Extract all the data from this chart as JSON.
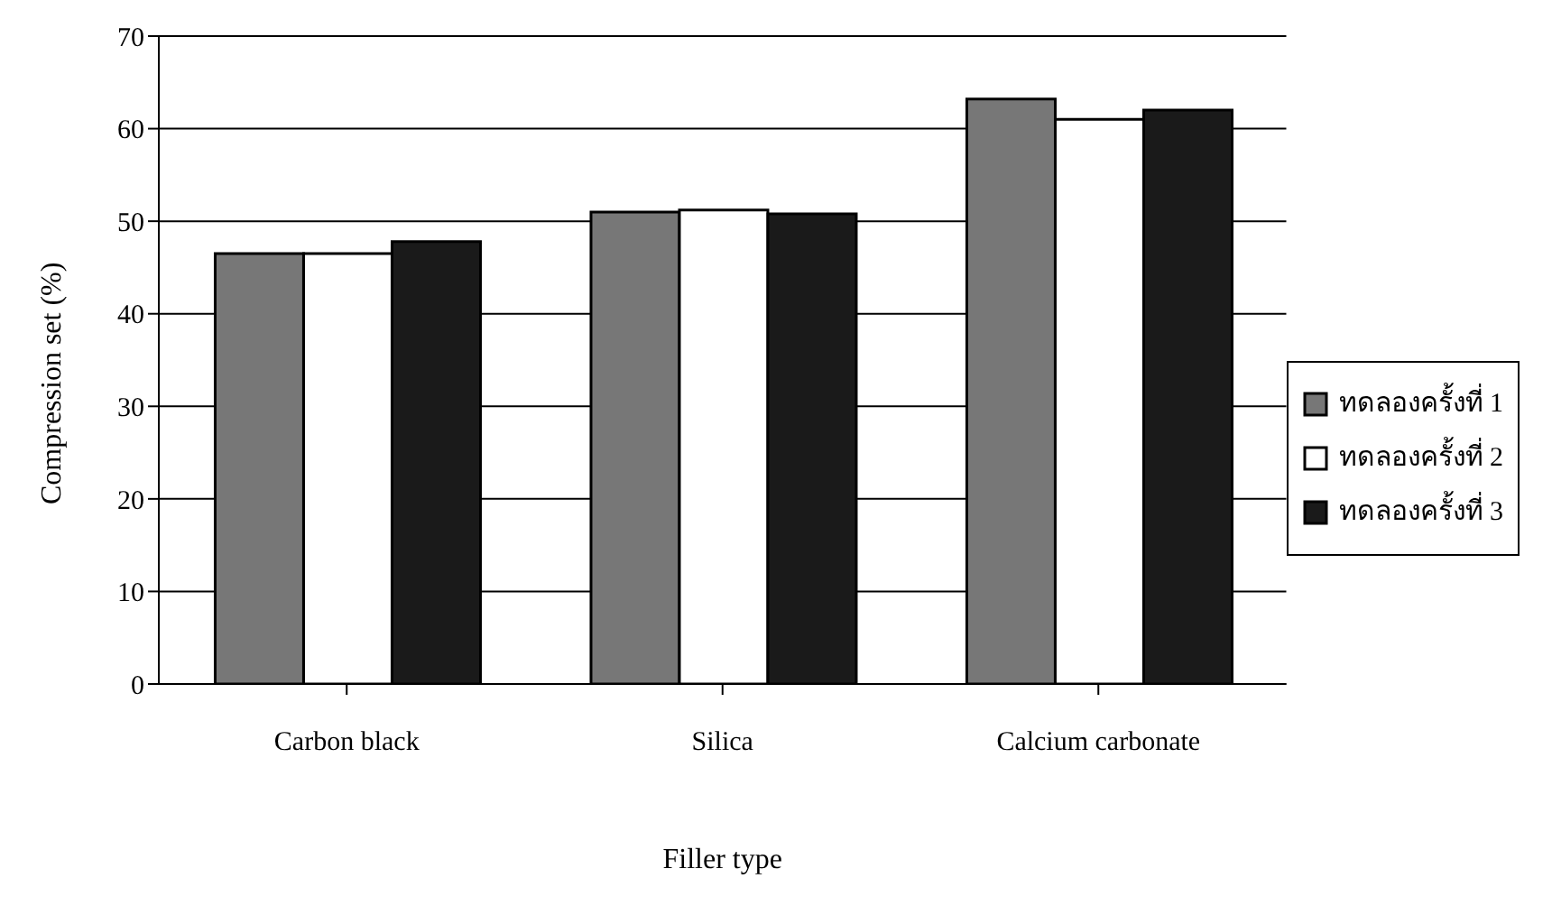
{
  "chart_data": {
    "type": "bar",
    "xlabel": "Filler type",
    "ylabel": "Compression set (%)",
    "categories": [
      "Carbon black",
      "Silica",
      "Calcium carbonate"
    ],
    "series": [
      {
        "name": "ทดลองครั้งที่ 1",
        "color": "#777777",
        "values": [
          46.5,
          51,
          63.2
        ]
      },
      {
        "name": "ทดลองครั้งที่ 2",
        "color": "#ffffff",
        "values": [
          46.5,
          51.2,
          61
        ]
      },
      {
        "name": "ทดลองครั้งที่ 3",
        "color": "#1a1a1a",
        "values": [
          47.8,
          50.8,
          62
        ]
      }
    ],
    "ylim": [
      0,
      70
    ],
    "yticks": [
      0,
      10,
      20,
      30,
      40,
      50,
      60,
      70
    ],
    "grid": "y",
    "legend": "right"
  }
}
